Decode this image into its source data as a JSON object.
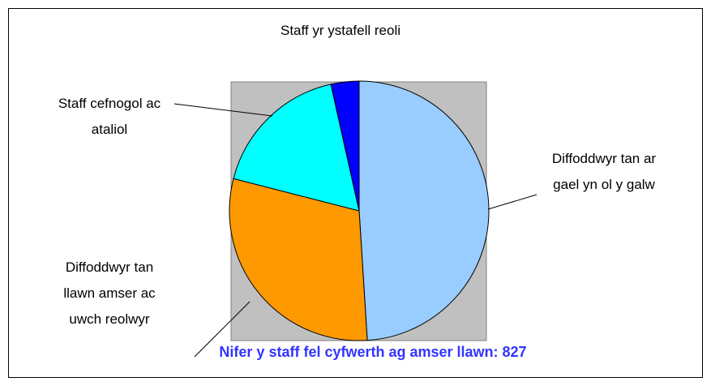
{
  "chart_data": {
    "type": "pie",
    "title": "Nifer y staff fel cyfwerth ag amser llawn: 827",
    "categories": [
      "Diffoddwyr tan ar gael yn ol y galw",
      "Diffoddwyr tan llawn amser ac uwch reolwyr",
      "Staff cefnogol ac ataliol",
      "Staff yr ystafell reoli"
    ],
    "values": [
      49,
      30,
      17.5,
      3.5
    ],
    "colors": [
      "#99ccff",
      "#ff9900",
      "#00ffff",
      "#0000ff"
    ]
  }
}
